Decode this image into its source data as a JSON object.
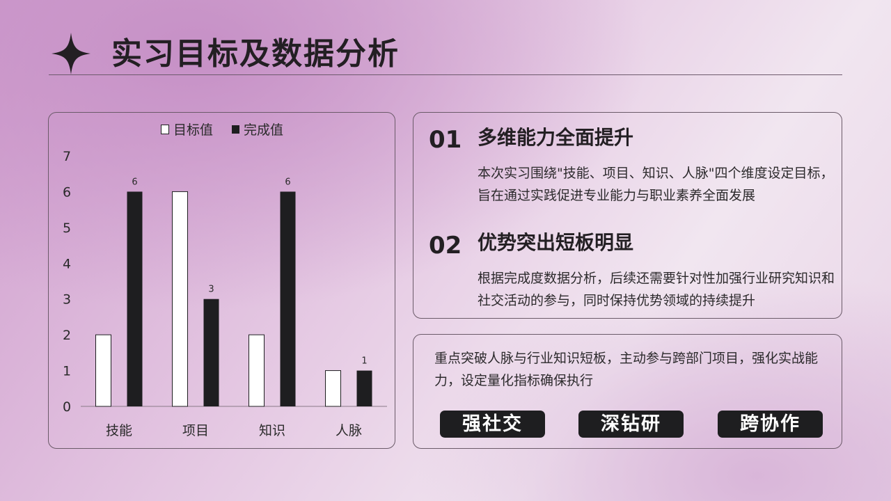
{
  "page": {
    "title": "实习目标及数据分析"
  },
  "chart_data": {
    "type": "bar",
    "categories": [
      "技能",
      "项目",
      "知识",
      "人脉"
    ],
    "series": [
      {
        "name": "目标值",
        "values": [
          2,
          6,
          2,
          1
        ],
        "color": "#ffffff",
        "stroke": "#1e1e20"
      },
      {
        "name": "完成值",
        "values": [
          6,
          3,
          6,
          1
        ],
        "color": "#1e1e20",
        "stroke": "#1e1e20"
      }
    ],
    "data_labels": {
      "series": "完成值",
      "values": [
        "6",
        "3",
        "6",
        "1"
      ]
    },
    "ylim": [
      0,
      7
    ],
    "yticks": [
      "0",
      "1",
      "2",
      "3",
      "4",
      "5",
      "6",
      "7"
    ],
    "legend_position": "top",
    "grid": false
  },
  "points": {
    "items": [
      {
        "num": "01",
        "heading": "多维能力全面提升",
        "body": "本次实习围绕\"技能、项目、知识、人脉\"四个维度设定目标，旨在通过实践促进专业能力与职业素养全面发展"
      },
      {
        "num": "02",
        "heading": "优势突出短板明显",
        "body": "根据完成度数据分析，后续还需要针对性加强行业研究知识和社交活动的参与，同时保持优势领域的持续提升"
      }
    ]
  },
  "summary": {
    "text": "重点突破人脉与行业知识短板，主动参与跨部门项目，强化实战能力，设定量化指标确保执行",
    "tags": [
      "强社交",
      "深钻研",
      "跨协作"
    ]
  }
}
